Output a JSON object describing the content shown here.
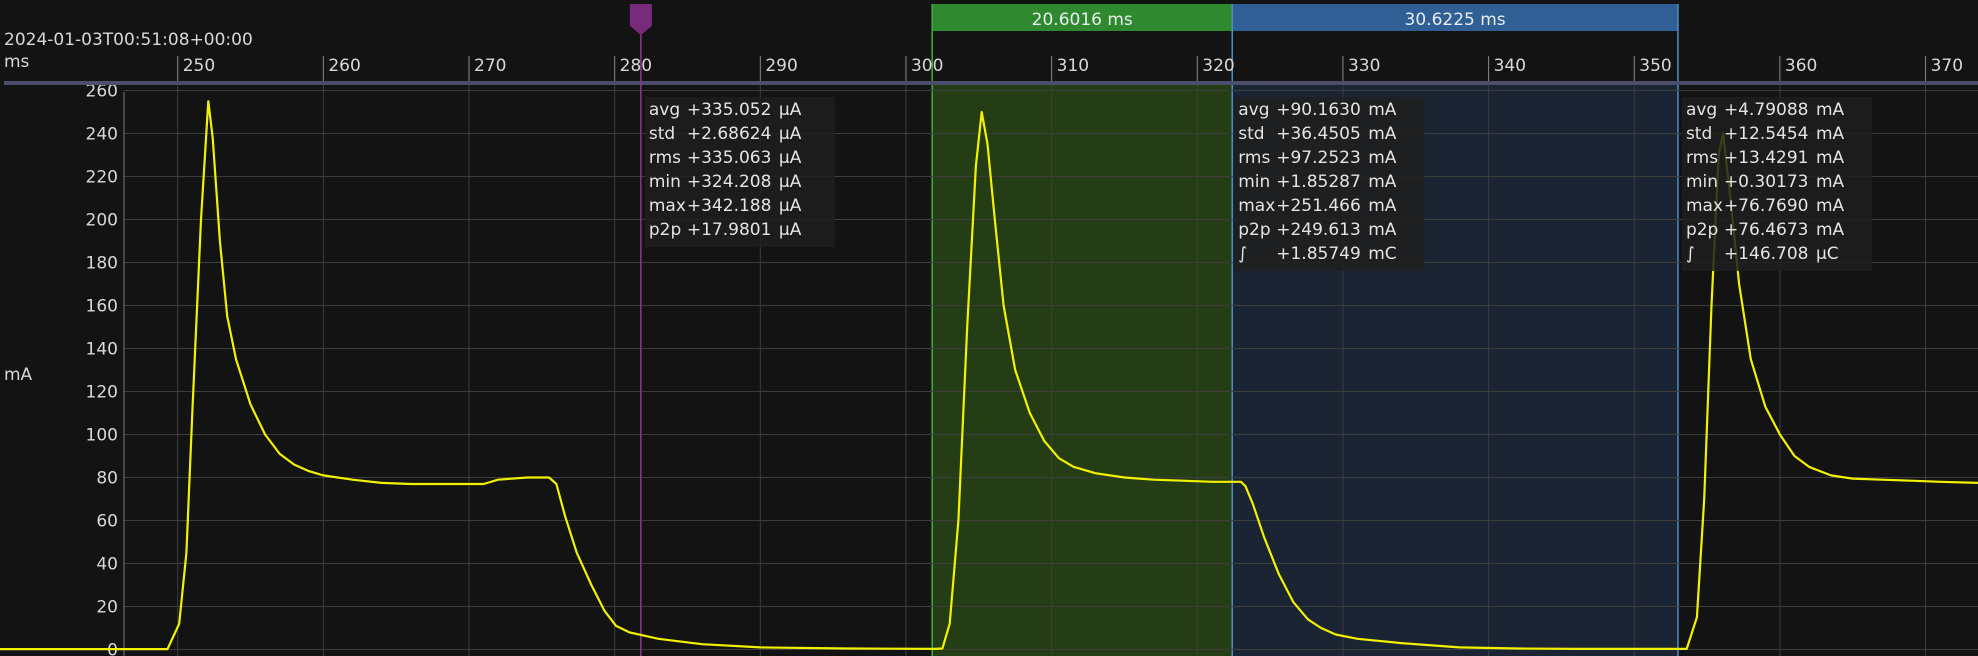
{
  "header": {
    "timestamp": "2024-01-03T00:51:08+00:00",
    "x_unit": "ms",
    "y_unit": "mA"
  },
  "colors": {
    "background": "#131313",
    "trace": "#f2f200",
    "grid": "#3d3d3d",
    "axis_band": "#4b4f6b",
    "marker": "#7a2a7a",
    "region1_fill": "#243d14",
    "region1_header": "#2f8a2f",
    "region2_fill": "#1a2433",
    "region2_header": "#2f5f94",
    "stats_bg": "#1f1f1f"
  },
  "chart_data": {
    "type": "line",
    "title": "",
    "xlabel": "ms",
    "ylabel": "mA",
    "xlim": [
      237.8,
      373.6
    ],
    "ylim": [
      -3,
      263
    ],
    "x_ticks": [
      250,
      260,
      270,
      280,
      290,
      300,
      310,
      320,
      330,
      340,
      350,
      360,
      370
    ],
    "y_ticks": [
      0,
      20,
      40,
      60,
      80,
      100,
      120,
      140,
      160,
      180,
      200,
      220,
      240,
      260
    ],
    "grid": true,
    "series": [
      {
        "points": [
          [
            237.8,
            0.2
          ],
          [
            249.3,
            0.2
          ],
          [
            250.1,
            12
          ],
          [
            250.6,
            45
          ],
          [
            251.0,
            110
          ],
          [
            251.6,
            200
          ],
          [
            252.1,
            255
          ],
          [
            252.4,
            238
          ],
          [
            252.9,
            190
          ],
          [
            253.4,
            155
          ],
          [
            254.0,
            135
          ],
          [
            255.0,
            114
          ],
          [
            256.0,
            100
          ],
          [
            257.0,
            91
          ],
          [
            258.0,
            86
          ],
          [
            259.0,
            83
          ],
          [
            260.0,
            81
          ],
          [
            262.0,
            79
          ],
          [
            264.0,
            77.5
          ],
          [
            266.0,
            77
          ],
          [
            268.0,
            77
          ],
          [
            270.0,
            77
          ],
          [
            271.0,
            77
          ],
          [
            272.0,
            79
          ],
          [
            274.0,
            80
          ],
          [
            275.5,
            80
          ],
          [
            276.0,
            77
          ],
          [
            276.6,
            62
          ],
          [
            277.4,
            45
          ],
          [
            278.4,
            30
          ],
          [
            279.3,
            18
          ],
          [
            280.1,
            11
          ],
          [
            281.0,
            8
          ],
          [
            283.0,
            5
          ],
          [
            286.0,
            2.5
          ],
          [
            290.0,
            1
          ],
          [
            296.0,
            0.5
          ],
          [
            302.0,
            0.3
          ],
          [
            302.5,
            0.5
          ],
          [
            303.0,
            12
          ],
          [
            303.6,
            60
          ],
          [
            304.2,
            150
          ],
          [
            304.8,
            225
          ],
          [
            305.2,
            250
          ],
          [
            305.6,
            235
          ],
          [
            306.1,
            200
          ],
          [
            306.7,
            160
          ],
          [
            307.5,
            130
          ],
          [
            308.5,
            110
          ],
          [
            309.5,
            97
          ],
          [
            310.5,
            89
          ],
          [
            311.5,
            85
          ],
          [
            313.0,
            82
          ],
          [
            315.0,
            80
          ],
          [
            317.0,
            79
          ],
          [
            319.0,
            78.5
          ],
          [
            321.0,
            78
          ],
          [
            323.0,
            78
          ],
          [
            323.3,
            76
          ],
          [
            323.8,
            68
          ],
          [
            324.6,
            52
          ],
          [
            325.6,
            35
          ],
          [
            326.6,
            22
          ],
          [
            327.6,
            14
          ],
          [
            328.5,
            10
          ],
          [
            329.5,
            7
          ],
          [
            331.0,
            5
          ],
          [
            334.0,
            3
          ],
          [
            338.0,
            1
          ],
          [
            342.0,
            0.5
          ],
          [
            346.0,
            0.3
          ],
          [
            353.6,
            0.3
          ],
          [
            354.3,
            15
          ],
          [
            354.8,
            70
          ],
          [
            355.3,
            160
          ],
          [
            355.8,
            230
          ],
          [
            356.1,
            240
          ],
          [
            356.6,
            210
          ],
          [
            357.2,
            170
          ],
          [
            358.0,
            135
          ],
          [
            359.0,
            113
          ],
          [
            360.0,
            100
          ],
          [
            361.0,
            90
          ],
          [
            362.0,
            85
          ],
          [
            363.5,
            81
          ],
          [
            365.0,
            79.5
          ],
          [
            367.0,
            79
          ],
          [
            369.0,
            78.5
          ],
          [
            371.0,
            78
          ],
          [
            373.6,
            77.5
          ]
        ]
      }
    ],
    "marker": {
      "x": 281.8,
      "stats": [
        {
          "label": "avg",
          "value": "+335.052",
          "unit": "µA"
        },
        {
          "label": "std",
          "value": "+2.68624",
          "unit": "µA"
        },
        {
          "label": "rms",
          "value": "+335.063",
          "unit": "µA"
        },
        {
          "label": "min",
          "value": "+324.208",
          "unit": "µA"
        },
        {
          "label": "max",
          "value": "+342.188",
          "unit": "µA"
        },
        {
          "label": "p2p",
          "value": "+17.9801",
          "unit": "µA"
        }
      ]
    },
    "regions": [
      {
        "start": 301.8,
        "end": 322.4,
        "label": "20.6016 ms",
        "color": "green",
        "stats": []
      },
      {
        "start": 322.4,
        "end": 353.0,
        "label": "30.6225 ms",
        "color": "blue",
        "stats": [
          {
            "label": "avg",
            "value": "+90.1630",
            "unit": "mA"
          },
          {
            "label": "std",
            "value": "+36.4505",
            "unit": "mA"
          },
          {
            "label": "rms",
            "value": "+97.2523",
            "unit": "mA"
          },
          {
            "label": "min",
            "value": "+1.85287",
            "unit": "mA"
          },
          {
            "label": "max",
            "value": "+251.466",
            "unit": "mA"
          },
          {
            "label": "p2p",
            "value": "+249.613",
            "unit": "mA"
          },
          {
            "label": "∫",
            "value": "+1.85749",
            "unit": "mC"
          }
        ]
      }
    ],
    "right_stats": [
      {
        "label": "avg",
        "value": "+4.79088",
        "unit": "mA"
      },
      {
        "label": "std",
        "value": "+12.5454",
        "unit": "mA"
      },
      {
        "label": "rms",
        "value": "+13.4291",
        "unit": "mA"
      },
      {
        "label": "min",
        "value": "+0.30173",
        "unit": "mA"
      },
      {
        "label": "max",
        "value": "+76.7690",
        "unit": "mA"
      },
      {
        "label": "p2p",
        "value": "+76.4673",
        "unit": "mA"
      },
      {
        "label": "∫",
        "value": "+146.708",
        "unit": "µC"
      }
    ]
  }
}
